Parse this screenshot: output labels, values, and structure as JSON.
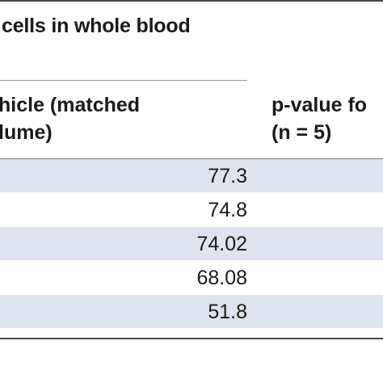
{
  "table": {
    "caption_fragment": "cells in whole blood",
    "headers": {
      "vehicle_line1": "hicle (matched",
      "vehicle_line2": "lume)",
      "pvalue_line1": "p-value fo",
      "pvalue_line2": "(n = 5)"
    },
    "rows": [
      {
        "vehicle": "77.3"
      },
      {
        "vehicle": "74.8"
      },
      {
        "vehicle": "74.02"
      },
      {
        "vehicle": "68.08"
      },
      {
        "vehicle": "51.8"
      }
    ]
  },
  "colors": {
    "row_shade": "#dfe3ef",
    "rule": "#444444",
    "text": "#1a1a1a"
  }
}
